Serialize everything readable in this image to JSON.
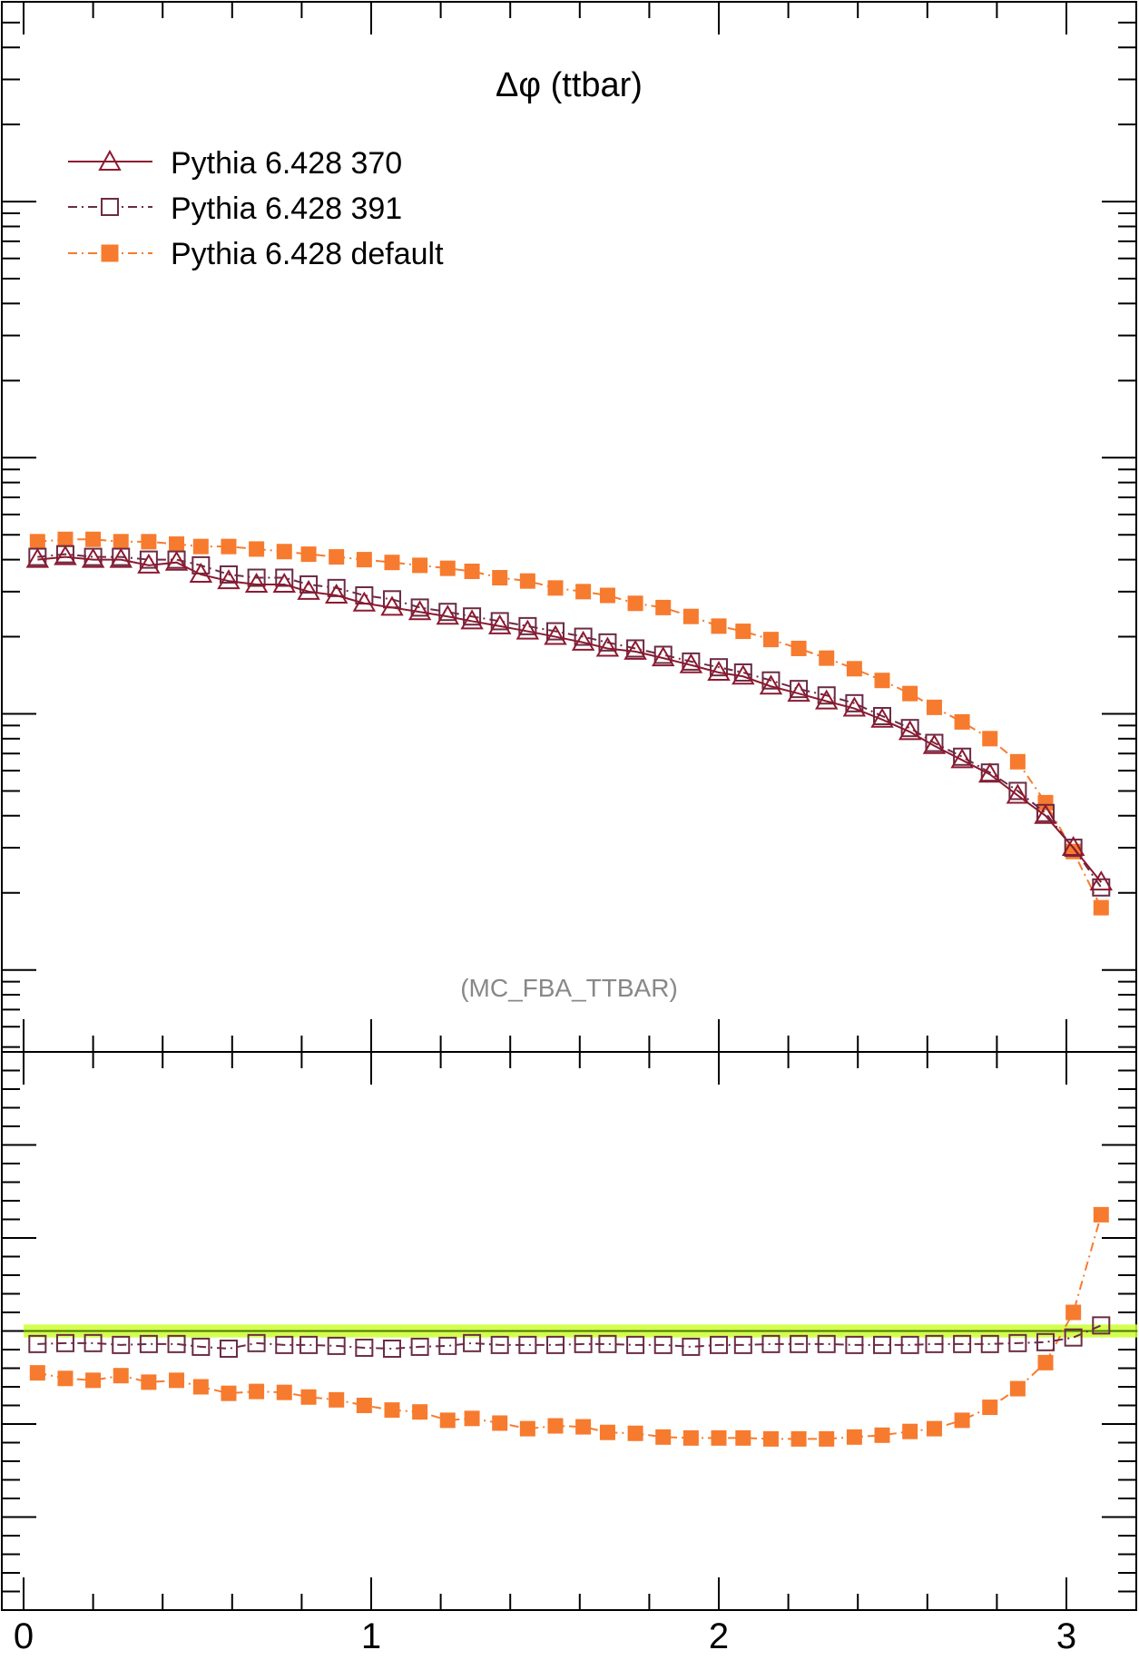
{
  "chart_data": [
    {
      "type": "line",
      "panel": "main",
      "title": "Δφ (ttbar)",
      "annotation": "(MC_FBA_TTBAR)",
      "xlim": [
        -0.02,
        3.2
      ],
      "ylim": [
        0,
        1
      ],
      "y_scale": "log",
      "y_values_note": "",
      "legend_position": "top-left",
      "x": [
        0.04,
        0.12,
        0.2,
        0.28,
        0.36,
        0.44,
        0.51,
        0.59,
        0.67,
        0.75,
        0.82,
        0.9,
        0.98,
        1.06,
        1.14,
        1.22,
        1.29,
        1.37,
        1.45,
        1.53,
        1.61,
        1.68,
        1.76,
        1.84,
        1.92,
        2.0,
        2.07,
        2.15,
        2.23,
        2.31,
        2.39,
        2.47,
        2.55,
        2.62,
        2.7,
        2.78,
        2.86,
        2.94,
        3.02,
        3.1
      ],
      "series": [
        {
          "name": "Pythia 6.428 370",
          "color": "#8c1a30",
          "marker": "open-triangle",
          "line": "solid",
          "values": [
            0.04,
            0.041,
            0.04,
            0.04,
            0.038,
            0.039,
            0.035,
            0.033,
            0.032,
            0.032,
            0.03,
            0.029,
            0.027,
            0.026,
            0.025,
            0.024,
            0.023,
            0.022,
            0.021,
            0.02,
            0.019,
            0.018,
            0.0175,
            0.0165,
            0.0155,
            0.0145,
            0.014,
            0.0128,
            0.012,
            0.0112,
            0.0105,
            0.0095,
            0.0085,
            0.0075,
            0.0066,
            0.0058,
            0.0048,
            0.004,
            0.003,
            0.0022
          ]
        },
        {
          "name": "Pythia 6.428 391",
          "color": "#6b2b45",
          "marker": "open-square",
          "line": "dash-dot",
          "values": [
            0.041,
            0.042,
            0.041,
            0.041,
            0.04,
            0.04,
            0.038,
            0.035,
            0.034,
            0.034,
            0.032,
            0.031,
            0.029,
            0.028,
            0.026,
            0.025,
            0.024,
            0.023,
            0.022,
            0.021,
            0.02,
            0.019,
            0.018,
            0.017,
            0.016,
            0.0152,
            0.0145,
            0.0135,
            0.0125,
            0.0118,
            0.011,
            0.0098,
            0.0088,
            0.0077,
            0.0068,
            0.0059,
            0.005,
            0.0041,
            0.003,
            0.0021
          ]
        },
        {
          "name": "Pythia 6.428 default",
          "color": "#f77b2e",
          "marker": "filled-square",
          "line": "dash-dot",
          "values": [
            0.047,
            0.048,
            0.048,
            0.047,
            0.047,
            0.046,
            0.045,
            0.045,
            0.044,
            0.043,
            0.042,
            0.041,
            0.04,
            0.039,
            0.038,
            0.037,
            0.036,
            0.034,
            0.033,
            0.031,
            0.03,
            0.029,
            0.027,
            0.026,
            0.024,
            0.022,
            0.021,
            0.0195,
            0.018,
            0.0165,
            0.015,
            0.0135,
            0.012,
            0.0106,
            0.0093,
            0.008,
            0.0065,
            0.0045,
            0.0029,
            0.00175
          ]
        }
      ]
    },
    {
      "type": "line",
      "panel": "ratio",
      "xlim": [
        -0.02,
        3.2
      ],
      "ylim": [
        0.7,
        1.3
      ],
      "x_tick_labels": [
        "0",
        "1",
        "2",
        "3"
      ],
      "x_ticks": [
        0,
        1,
        2,
        3
      ],
      "reference": {
        "value": 1.0,
        "band": 0.007,
        "band_color": "#ccff33"
      },
      "x": [
        0.04,
        0.12,
        0.2,
        0.28,
        0.36,
        0.44,
        0.51,
        0.59,
        0.67,
        0.75,
        0.82,
        0.9,
        0.98,
        1.06,
        1.14,
        1.22,
        1.29,
        1.37,
        1.45,
        1.53,
        1.61,
        1.68,
        1.76,
        1.84,
        1.92,
        2.0,
        2.07,
        2.15,
        2.23,
        2.31,
        2.39,
        2.47,
        2.55,
        2.62,
        2.7,
        2.78,
        2.86,
        2.94,
        3.02,
        3.1
      ],
      "series": [
        {
          "name": "Pythia 6.428 391",
          "color": "#6b2b45",
          "marker": "open-square",
          "line": "dash-dot",
          "values": [
            0.986,
            0.987,
            0.987,
            0.985,
            0.986,
            0.986,
            0.983,
            0.981,
            0.987,
            0.985,
            0.985,
            0.984,
            0.982,
            0.981,
            0.983,
            0.984,
            0.987,
            0.985,
            0.985,
            0.985,
            0.986,
            0.986,
            0.985,
            0.985,
            0.983,
            0.985,
            0.985,
            0.986,
            0.986,
            0.986,
            0.985,
            0.985,
            0.985,
            0.986,
            0.986,
            0.986,
            0.987,
            0.988,
            0.993,
            1.006
          ]
        },
        {
          "name": "Pythia 6.428 default",
          "color": "#f77b2e",
          "marker": "filled-square",
          "line": "dash-dot",
          "values": [
            0.955,
            0.949,
            0.947,
            0.952,
            0.945,
            0.947,
            0.94,
            0.933,
            0.935,
            0.934,
            0.929,
            0.926,
            0.92,
            0.915,
            0.913,
            0.904,
            0.906,
            0.901,
            0.895,
            0.898,
            0.897,
            0.891,
            0.89,
            0.886,
            0.885,
            0.885,
            0.885,
            0.884,
            0.884,
            0.884,
            0.886,
            0.888,
            0.892,
            0.895,
            0.904,
            0.918,
            0.938,
            0.966,
            1.02,
            1.125
          ]
        }
      ]
    }
  ]
}
